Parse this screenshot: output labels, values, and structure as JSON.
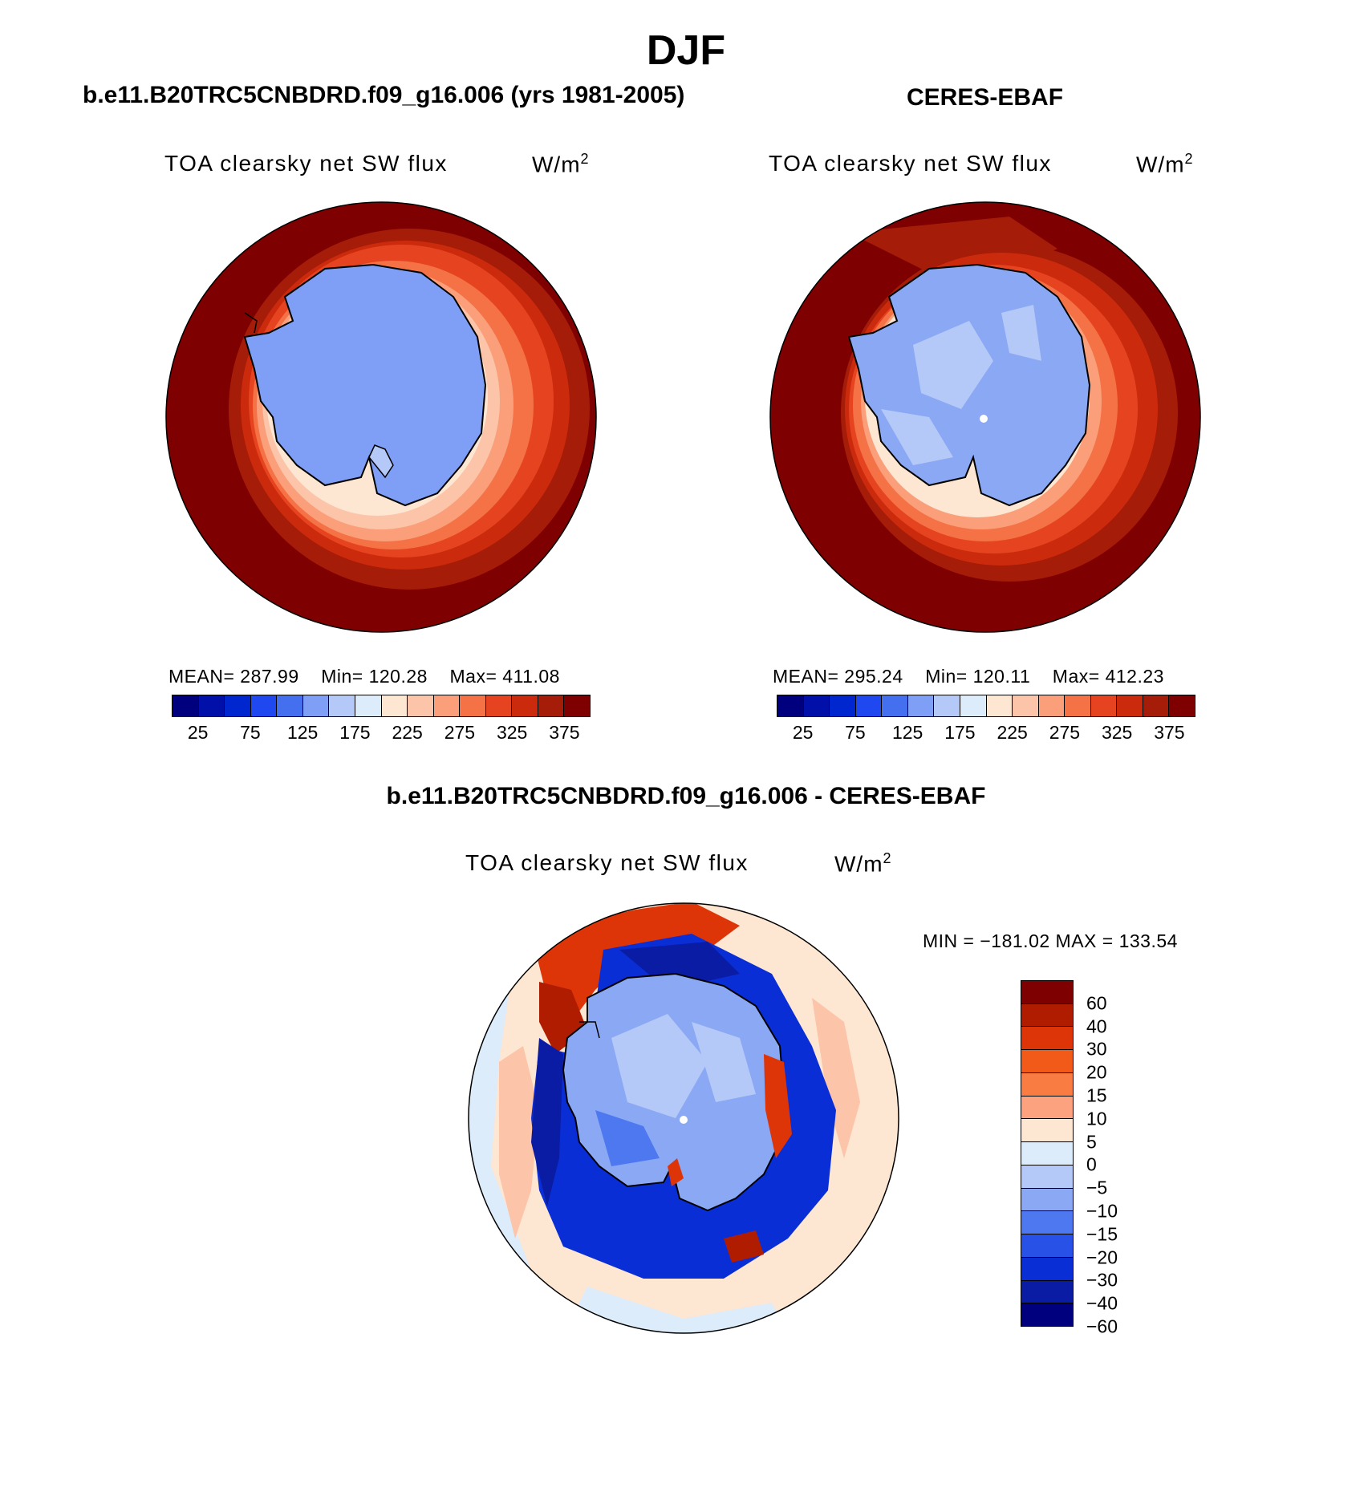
{
  "title": "DJF",
  "panels": {
    "model": {
      "header": "b.e11.B20TRC5CNBDRD.f09_g16.006 (yrs 1981-2005)",
      "variable": "TOA clearsky net SW flux",
      "units": "W/m",
      "units_exp": "2",
      "mean_label": "MEAN=",
      "mean": "287.99",
      "min_label": "Min=",
      "min": "120.28",
      "max_label": "Max=",
      "max": "411.08"
    },
    "obs": {
      "header": "CERES-EBAF",
      "variable": "TOA clearsky net SW flux",
      "units": "W/m",
      "units_exp": "2",
      "mean_label": "MEAN=",
      "mean": "295.24",
      "min_label": "Min=",
      "min": "120.11",
      "max_label": "Max=",
      "max": "412.23"
    },
    "diff": {
      "header": "b.e11.B20TRC5CNBDRD.f09_g16.006 - CERES-EBAF",
      "variable": "TOA clearsky net SW flux",
      "units": "W/m",
      "units_exp": "2",
      "minmax": "MIN = −181.02 MAX = 133.54"
    }
  },
  "abs_colorbar": {
    "colors": [
      "#00007f",
      "#0010a8",
      "#0027cf",
      "#1f48f0",
      "#4470f0",
      "#7f9ef5",
      "#b4c9f8",
      "#dcecfb",
      "#fde6d2",
      "#fcc4a8",
      "#fa9f7a",
      "#f47245",
      "#e64420",
      "#cc2a0c",
      "#a51c08",
      "#7f0000"
    ],
    "ticks": [
      "25",
      "75",
      "125",
      "175",
      "225",
      "275",
      "325",
      "375"
    ]
  },
  "diff_colorbar": {
    "colors": [
      "#7f0000",
      "#b01c00",
      "#dd3508",
      "#f25a1a",
      "#f97c42",
      "#fca27e",
      "#fde6d2",
      "#dcecfb",
      "#b4c9f8",
      "#8aa8f4",
      "#4e78f0",
      "#2851e8",
      "#0a2ed6",
      "#0a1ca4",
      "#00007f"
    ],
    "ticks": [
      "60",
      "40",
      "30",
      "20",
      "15",
      "10",
      "5",
      "0",
      "−5",
      "−10",
      "−15",
      "−20",
      "−30",
      "−40",
      "−60"
    ]
  }
}
